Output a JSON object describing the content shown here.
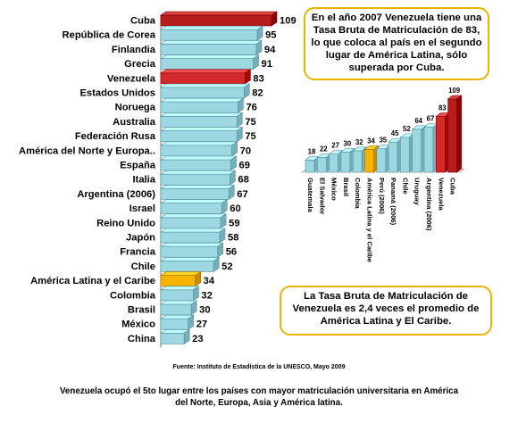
{
  "colors": {
    "bar_default": "#9cd7e2",
    "bar_highlight_red": "#d22a2a",
    "bar_cuba": "#b81d1d",
    "bar_latam": "#f4b400",
    "callout_border": "#e8b400"
  },
  "chart_data": [
    {
      "type": "bar",
      "orientation": "horizontal",
      "categories": [
        "Cuba",
        "República de Corea",
        "Finlandia",
        "Grecia",
        "Venezuela",
        "Estados Unidos",
        "Noruega",
        "Australia",
        "Federación Rusa",
        "América del Norte y Europa..",
        "España",
        "Italia",
        "Argentina (2006)",
        "Israel",
        "Reino Unido",
        "Japón",
        "Francia",
        "Chile",
        "América Latina y el Caribe",
        "Colombia",
        "Brasil",
        "México",
        "China"
      ],
      "values": [
        109,
        95,
        94,
        91,
        83,
        82,
        76,
        75,
        75,
        70,
        69,
        68,
        67,
        60,
        59,
        58,
        56,
        52,
        34,
        32,
        30,
        27,
        23
      ],
      "value_labels": [
        "109",
        "95",
        "94",
        "91",
        "83",
        "82",
        "76",
        "75",
        "75",
        "70",
        "69",
        "68",
        "67",
        "60",
        "59",
        "58",
        "56",
        "52",
        "34",
        "32",
        "30",
        "27",
        "23"
      ],
      "highlight": {
        "Cuba": "bar_cuba",
        "Venezuela": "bar_highlight_red",
        "América Latina y el Caribe": "bar_latam"
      }
    },
    {
      "type": "bar",
      "orientation": "vertical",
      "categories": [
        "Guatemala",
        "El Salvador",
        "México",
        "Brasil",
        "Colombia",
        "América Latina y el Caribe",
        "Perú (2006)",
        "Panamá (2006)",
        "Chile",
        "Uruguay",
        "Argentina (2006)",
        "Venezuela",
        "Cuba"
      ],
      "values": [
        18,
        22,
        27,
        30,
        32,
        34,
        35,
        45,
        52,
        64,
        67,
        83,
        109
      ],
      "value_labels": [
        "18",
        "22",
        "27",
        "30",
        "32",
        "34",
        "35",
        "45",
        "52",
        "64",
        "67",
        "83",
        "109"
      ],
      "highlight": {
        "Cuba": "bar_cuba",
        "Venezuela": "bar_highlight_red",
        "América Latina y el Caribe": "bar_latam"
      }
    }
  ],
  "callout_top": "En el año 2007 Venezuela tiene una Tasa Bruta de Matriculación de 83, lo que coloca al país en el segundo lugar de América Latina, sólo superada por Cuba.",
  "callout_bottom": "La Tasa Bruta de Matriculación de Venezuela es 2,4 veces el promedio de América Latina y El Caribe.",
  "source": "Fuente: Instituto de Estadística de la UNESCO, Mayo 2009",
  "footer": "Venezuela ocupó el 5to lugar entre los países con mayor matriculación universitaria en América del Norte, Europa, Asia y América latina."
}
